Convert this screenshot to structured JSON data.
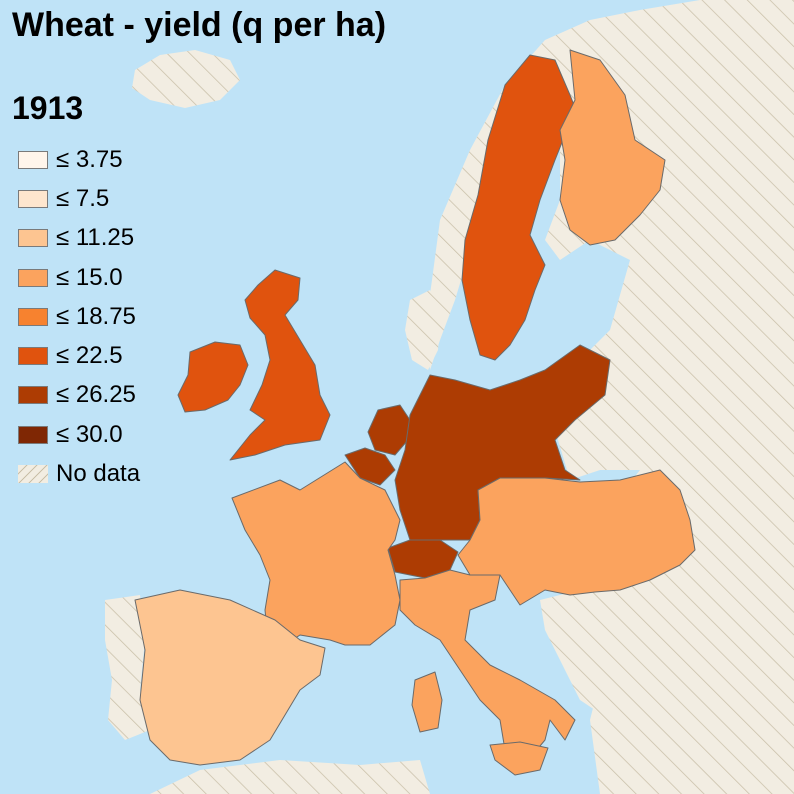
{
  "title": "Wheat - yield (q per ha)",
  "year": "1913",
  "legend": {
    "items": [
      {
        "label": "≤ 3.75",
        "color": "#fff5eb"
      },
      {
        "label": "≤ 7.5",
        "color": "#fee6ce"
      },
      {
        "label": "≤ 11.25",
        "color": "#fdc591"
      },
      {
        "label": "≤ 15.0",
        "color": "#fba35e"
      },
      {
        "label": "≤ 18.75",
        "color": "#f7822f"
      },
      {
        "label": "≤ 22.5",
        "color": "#e0530e"
      },
      {
        "label": "≤ 26.25",
        "color": "#ad3c03"
      },
      {
        "label": "≤ 30.0",
        "color": "#7f2704"
      }
    ],
    "nodata_label": "No data"
  },
  "colors": {
    "sea": "#bfe3f7",
    "nodata_fill": "#f2ede2",
    "nodata_hatch": "#c9bfa8",
    "border": "#6a6a6a"
  },
  "regions": {
    "united_kingdom": {
      "class": "≤ 22.5"
    },
    "ireland": {
      "class": "≤ 22.5"
    },
    "sweden": {
      "class": "≤ 22.5"
    },
    "finland": {
      "class": "≤ 15.0"
    },
    "germany": {
      "class": "≤ 26.25"
    },
    "netherlands": {
      "class": "≤ 26.25"
    },
    "belgium": {
      "class": "≤ 26.25"
    },
    "switzerland": {
      "class": "≤ 26.25"
    },
    "france": {
      "class": "≤ 15.0"
    },
    "austria_hungary": {
      "class": "≤ 15.0"
    },
    "italy": {
      "class": "≤ 15.0"
    },
    "spain": {
      "class": "≤ 11.25"
    }
  }
}
